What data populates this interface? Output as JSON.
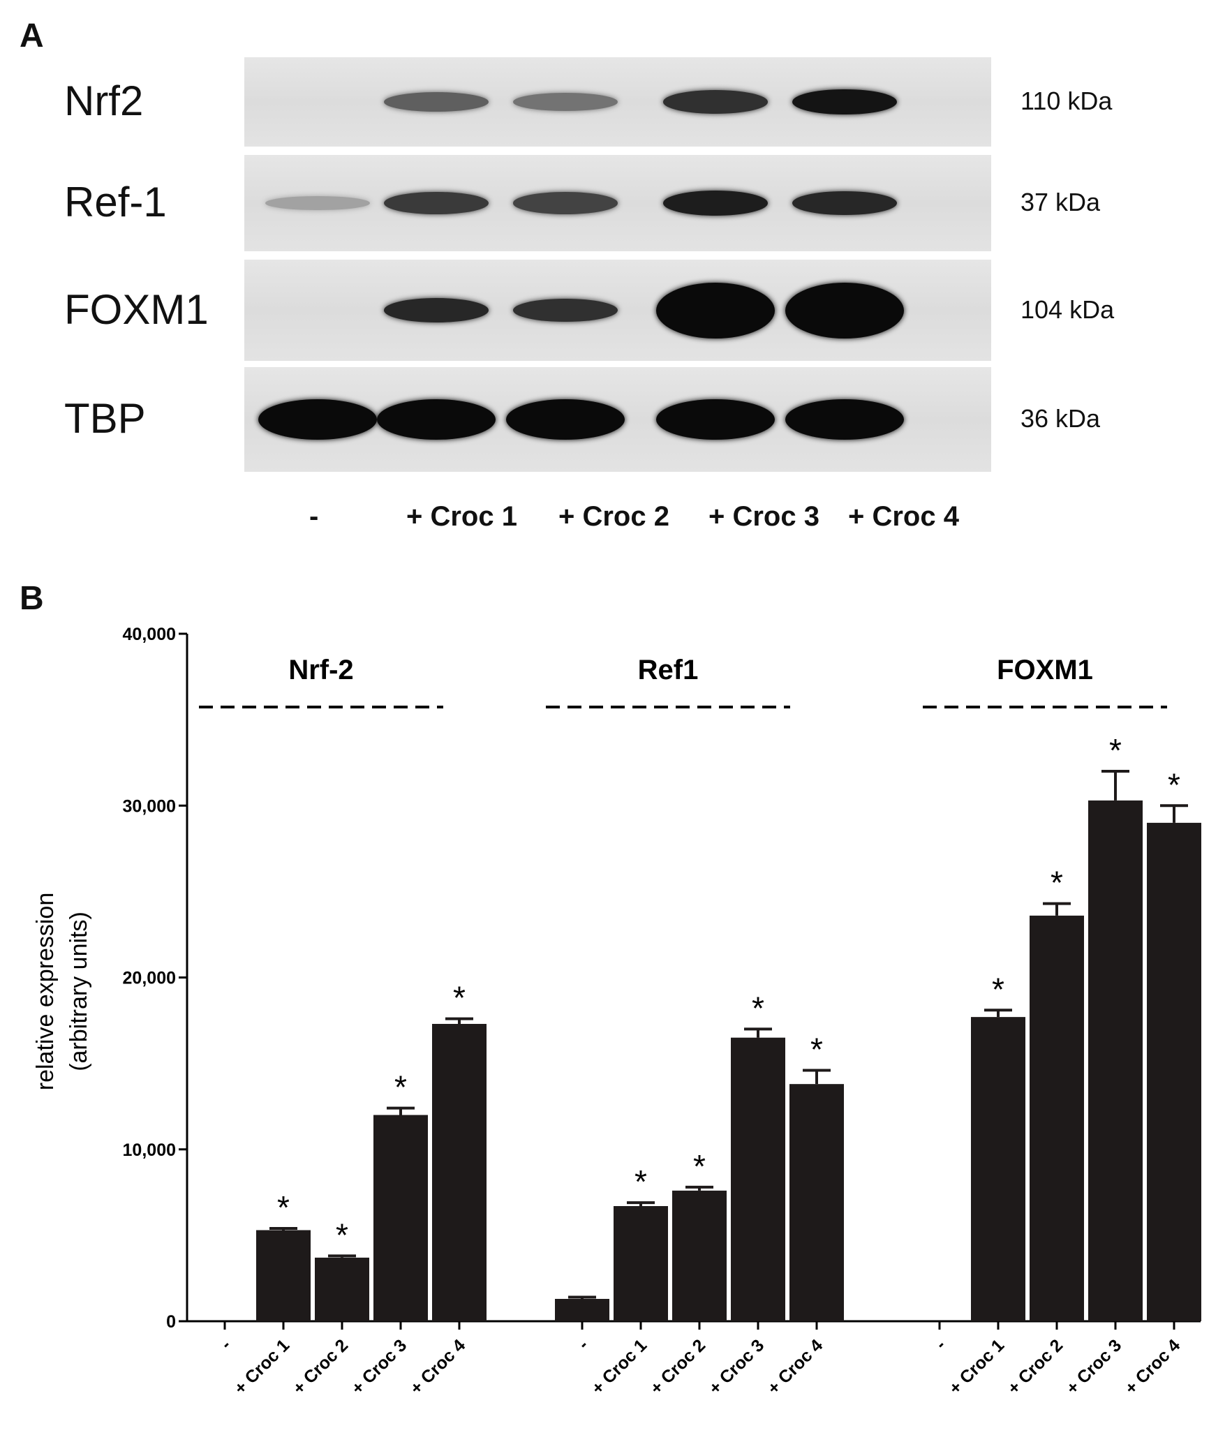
{
  "panel_a": {
    "letter": "A",
    "blots": [
      {
        "protein": "Nrf2",
        "kda": "110 kDa",
        "intensity": [
          0,
          0.55,
          0.45,
          0.8,
          0.95
        ]
      },
      {
        "protein": "Ref-1",
        "kda": "37 kDa",
        "intensity": [
          0.2,
          0.75,
          0.7,
          0.9,
          0.85
        ]
      },
      {
        "protein": "FOXM1",
        "kda": "104 kDa",
        "intensity": [
          0,
          0.85,
          0.8,
          1.0,
          1.0
        ]
      },
      {
        "protein": "TBP",
        "kda": "36 kDa",
        "intensity": [
          1.0,
          1.0,
          1.0,
          1.0,
          1.0
        ]
      }
    ],
    "lanes": [
      "-",
      "+ Croc 1",
      "+ Croc 2",
      "+ Croc 3",
      "+ Croc 4"
    ]
  },
  "panel_b": {
    "letter": "B"
  },
  "chart_data": {
    "type": "bar",
    "ylabel": "relative expression\n(arbitrary units)",
    "ylabel_line1": "relative expression",
    "ylabel_line2": "(arbitrary units)",
    "ylim": [
      0,
      40000
    ],
    "yticks": [
      "0",
      "10,000",
      "20,000",
      "30,000",
      "40,000"
    ],
    "ytick_values": [
      0,
      10000,
      20000,
      30000,
      40000
    ],
    "categories": [
      "-",
      "+ Croc 1",
      "+ Croc 2",
      "+ Croc 3",
      "+ Croc 4"
    ],
    "bar_color": "#1e1a1a",
    "groups": [
      {
        "name": "Nrf-2",
        "values": [
          0,
          5300,
          3700,
          12000,
          17300
        ],
        "errors": [
          0,
          100,
          100,
          400,
          300
        ],
        "significant": [
          false,
          true,
          true,
          true,
          true
        ]
      },
      {
        "name": "Ref1",
        "values": [
          1300,
          6700,
          7600,
          16500,
          13800
        ],
        "errors": [
          100,
          200,
          200,
          500,
          800
        ],
        "significant": [
          false,
          true,
          true,
          true,
          true
        ]
      },
      {
        "name": "FOXM1",
        "values": [
          0,
          17700,
          23600,
          30300,
          29000
        ],
        "errors": [
          0,
          400,
          700,
          1700,
          1000
        ],
        "significant": [
          false,
          true,
          true,
          true,
          true
        ]
      }
    ],
    "significance_marker": "*",
    "grid": false,
    "legend": "none"
  }
}
